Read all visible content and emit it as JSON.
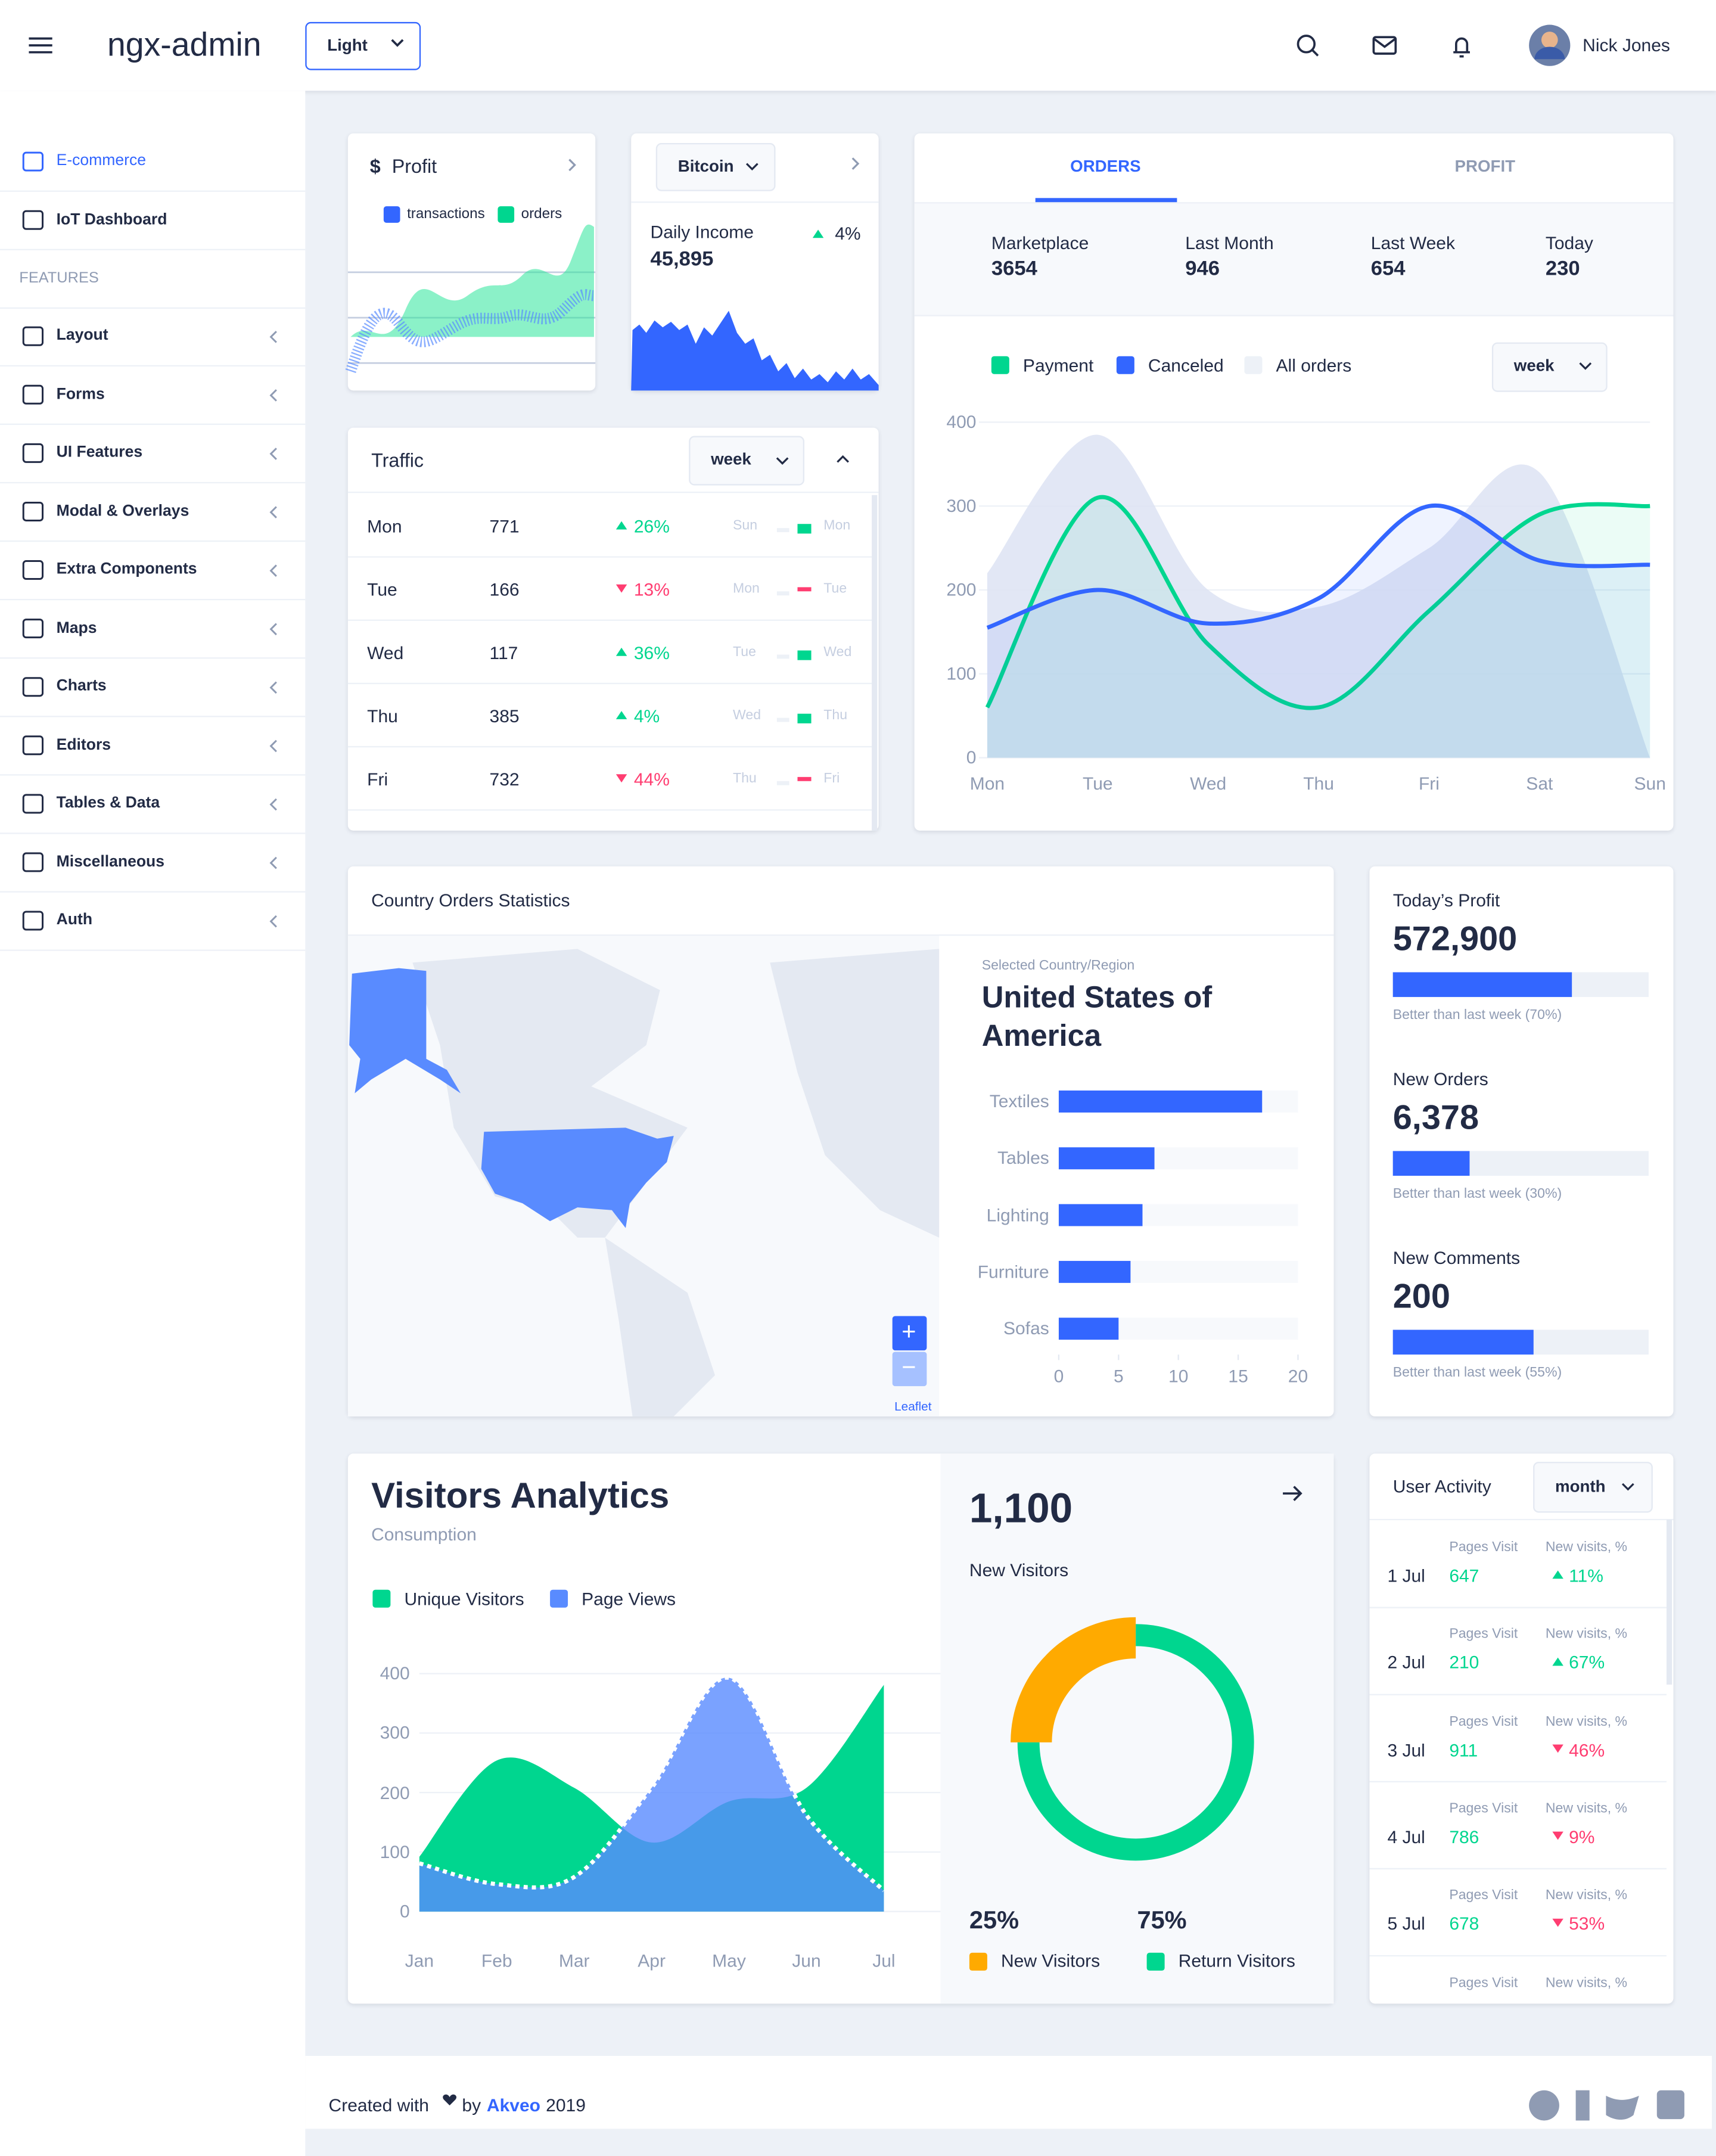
{
  "header": {
    "brand": "ngx-admin",
    "theme": "Light",
    "user": "Nick Jones"
  },
  "sidebar": {
    "main": [
      "E-commerce",
      "IoT Dashboard"
    ],
    "section": "FEATURES",
    "features": [
      "Layout",
      "Forms",
      "UI Features",
      "Modal & Overlays",
      "Extra Components",
      "Maps",
      "Charts",
      "Editors",
      "Tables & Data",
      "Miscellaneous",
      "Auth"
    ]
  },
  "profit": {
    "currency": "$",
    "title": "Profit",
    "legend": [
      "transactions",
      "orders"
    ]
  },
  "bitcoin": {
    "select": "Bitcoin",
    "label": "Daily Income",
    "value": "45,895",
    "change": "4%"
  },
  "traffic": {
    "title": "Traffic",
    "select": "week",
    "rows": [
      {
        "day": "Mon",
        "value": 771,
        "change": "26%",
        "trend": "up",
        "previous": "Sun",
        "current": "Mon"
      },
      {
        "day": "Tue",
        "value": 166,
        "change": "13%",
        "trend": "down",
        "previous": "Mon",
        "current": "Tue"
      },
      {
        "day": "Wed",
        "value": 117,
        "change": "36%",
        "trend": "up",
        "previous": "Tue",
        "current": "Wed"
      },
      {
        "day": "Thu",
        "value": 385,
        "change": "4%",
        "trend": "up",
        "previous": "Wed",
        "current": "Thu"
      },
      {
        "day": "Fri",
        "value": 732,
        "change": "44%",
        "trend": "down",
        "previous": "Thu",
        "current": "Fri"
      }
    ]
  },
  "orders": {
    "tabs": [
      "ORDERS",
      "PROFIT"
    ],
    "summary": [
      {
        "label": "Marketplace",
        "value": 3654
      },
      {
        "label": "Last Month",
        "value": 946
      },
      {
        "label": "Last Week",
        "value": 654
      },
      {
        "label": "Today",
        "value": 230
      }
    ],
    "select": "week",
    "chart_data": {
      "type": "line",
      "categories": [
        "Mon",
        "Tue",
        "Wed",
        "Thu",
        "Fri",
        "Sat",
        "Sun"
      ],
      "series": [
        {
          "name": "Payment",
          "color": "#00d68f",
          "values": [
            60,
            310,
            135,
            60,
            175,
            290,
            300
          ]
        },
        {
          "name": "Canceled",
          "color": "#3366ff",
          "values": [
            155,
            200,
            160,
            190,
            300,
            235,
            230
          ]
        },
        {
          "name": "All orders",
          "color": "#edf1f7",
          "style": "area",
          "values": [
            220,
            385,
            200,
            180,
            250,
            340,
            0
          ]
        }
      ],
      "ylim": [
        0,
        400
      ],
      "yticks": [
        0,
        100,
        200,
        300,
        400
      ],
      "grid": true
    }
  },
  "country": {
    "title": "Country Orders Statistics",
    "selected_label": "Selected Country/Region",
    "selected": "United States of America",
    "attribution": "Leaflet",
    "zoom_in": "+",
    "zoom_out": "−",
    "chart_data": {
      "type": "bar",
      "orientation": "horizontal",
      "categories": [
        "Textiles",
        "Tables",
        "Lighting",
        "Furniture",
        "Sofas"
      ],
      "values": [
        17,
        8,
        7,
        6,
        5
      ],
      "color": "#3366ff",
      "xlim": [
        0,
        20
      ],
      "xticks": [
        0,
        5,
        10,
        15,
        20
      ]
    }
  },
  "stats": [
    {
      "title": "Today’s Profit",
      "value": "572,900",
      "progress": 70,
      "note": "Better than last week (70%)"
    },
    {
      "title": "New Orders",
      "value": "6,378",
      "progress": 30,
      "note": "Better than last week (30%)"
    },
    {
      "title": "New Comments",
      "value": "200",
      "progress": 55,
      "note": "Better than last week (55%)"
    }
  ],
  "visitors": {
    "title": "Visitors Analytics",
    "subtitle": "Consumption",
    "chart_data": {
      "type": "area",
      "categories": [
        "Jan",
        "Feb",
        "Mar",
        "Apr",
        "May",
        "Jun",
        "Jul"
      ],
      "series": [
        {
          "name": "Unique Visitors",
          "color": "#00d68f",
          "values": [
            92,
            254,
            208,
            116,
            185,
            208,
            381
          ]
        },
        {
          "name": "Page Views",
          "color": "#598bff",
          "values": [
            81,
            46,
            58,
            208,
            393,
            162,
            35
          ]
        }
      ],
      "ylim": [
        0,
        400
      ],
      "yticks": [
        0,
        100,
        200,
        300,
        400
      ]
    },
    "new_visitors": {
      "value": "1,100",
      "label": "New Visitors"
    },
    "pie": {
      "chart_data": {
        "type": "pie",
        "categories": [
          "New Visitors",
          "Return Visitors"
        ],
        "values": [
          25,
          75
        ],
        "value_labels": [
          "25%",
          "75%"
        ],
        "colors": [
          "#ffaa00",
          "#00d68f"
        ]
      }
    }
  },
  "user_activity": {
    "title": "User Activity",
    "select": "month",
    "pages_label": "Pages Visit",
    "visits_label": "New visits, %",
    "rows": [
      {
        "date": "1 Jul",
        "pages": 647,
        "change": "11%",
        "trend": "up"
      },
      {
        "date": "2 Jul",
        "pages": 210,
        "change": "67%",
        "trend": "up"
      },
      {
        "date": "3 Jul",
        "pages": 911,
        "change": "46%",
        "trend": "down"
      },
      {
        "date": "4 Jul",
        "pages": 786,
        "change": "9%",
        "trend": "down"
      },
      {
        "date": "5 Jul",
        "pages": 678,
        "change": "53%",
        "trend": "down"
      }
    ]
  },
  "footer": {
    "created": "Created with",
    "by": "by",
    "company": "Akveo",
    "year": "2019"
  }
}
